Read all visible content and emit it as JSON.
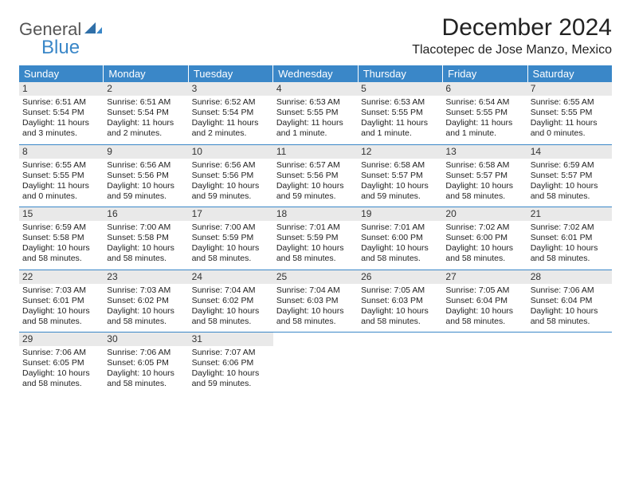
{
  "logo": {
    "word1": "General",
    "word2": "Blue"
  },
  "title": "December 2024",
  "location": "Tlacotepec de Jose Manzo, Mexico",
  "colors": {
    "header_bg": "#3a87c8",
    "header_text": "#ffffff",
    "daynum_bg": "#e9e9e9",
    "divider": "#3a87c8",
    "page_bg": "#ffffff",
    "text": "#222222",
    "logo_gray": "#555555",
    "logo_blue": "#3a87c8"
  },
  "dow": [
    "Sunday",
    "Monday",
    "Tuesday",
    "Wednesday",
    "Thursday",
    "Friday",
    "Saturday"
  ],
  "weeks": [
    [
      {
        "n": "1",
        "sr": "Sunrise: 6:51 AM",
        "ss": "Sunset: 5:54 PM",
        "dl": "Daylight: 11 hours and 3 minutes."
      },
      {
        "n": "2",
        "sr": "Sunrise: 6:51 AM",
        "ss": "Sunset: 5:54 PM",
        "dl": "Daylight: 11 hours and 2 minutes."
      },
      {
        "n": "3",
        "sr": "Sunrise: 6:52 AM",
        "ss": "Sunset: 5:54 PM",
        "dl": "Daylight: 11 hours and 2 minutes."
      },
      {
        "n": "4",
        "sr": "Sunrise: 6:53 AM",
        "ss": "Sunset: 5:55 PM",
        "dl": "Daylight: 11 hours and 1 minute."
      },
      {
        "n": "5",
        "sr": "Sunrise: 6:53 AM",
        "ss": "Sunset: 5:55 PM",
        "dl": "Daylight: 11 hours and 1 minute."
      },
      {
        "n": "6",
        "sr": "Sunrise: 6:54 AM",
        "ss": "Sunset: 5:55 PM",
        "dl": "Daylight: 11 hours and 1 minute."
      },
      {
        "n": "7",
        "sr": "Sunrise: 6:55 AM",
        "ss": "Sunset: 5:55 PM",
        "dl": "Daylight: 11 hours and 0 minutes."
      }
    ],
    [
      {
        "n": "8",
        "sr": "Sunrise: 6:55 AM",
        "ss": "Sunset: 5:55 PM",
        "dl": "Daylight: 11 hours and 0 minutes."
      },
      {
        "n": "9",
        "sr": "Sunrise: 6:56 AM",
        "ss": "Sunset: 5:56 PM",
        "dl": "Daylight: 10 hours and 59 minutes."
      },
      {
        "n": "10",
        "sr": "Sunrise: 6:56 AM",
        "ss": "Sunset: 5:56 PM",
        "dl": "Daylight: 10 hours and 59 minutes."
      },
      {
        "n": "11",
        "sr": "Sunrise: 6:57 AM",
        "ss": "Sunset: 5:56 PM",
        "dl": "Daylight: 10 hours and 59 minutes."
      },
      {
        "n": "12",
        "sr": "Sunrise: 6:58 AM",
        "ss": "Sunset: 5:57 PM",
        "dl": "Daylight: 10 hours and 59 minutes."
      },
      {
        "n": "13",
        "sr": "Sunrise: 6:58 AM",
        "ss": "Sunset: 5:57 PM",
        "dl": "Daylight: 10 hours and 58 minutes."
      },
      {
        "n": "14",
        "sr": "Sunrise: 6:59 AM",
        "ss": "Sunset: 5:57 PM",
        "dl": "Daylight: 10 hours and 58 minutes."
      }
    ],
    [
      {
        "n": "15",
        "sr": "Sunrise: 6:59 AM",
        "ss": "Sunset: 5:58 PM",
        "dl": "Daylight: 10 hours and 58 minutes."
      },
      {
        "n": "16",
        "sr": "Sunrise: 7:00 AM",
        "ss": "Sunset: 5:58 PM",
        "dl": "Daylight: 10 hours and 58 minutes."
      },
      {
        "n": "17",
        "sr": "Sunrise: 7:00 AM",
        "ss": "Sunset: 5:59 PM",
        "dl": "Daylight: 10 hours and 58 minutes."
      },
      {
        "n": "18",
        "sr": "Sunrise: 7:01 AM",
        "ss": "Sunset: 5:59 PM",
        "dl": "Daylight: 10 hours and 58 minutes."
      },
      {
        "n": "19",
        "sr": "Sunrise: 7:01 AM",
        "ss": "Sunset: 6:00 PM",
        "dl": "Daylight: 10 hours and 58 minutes."
      },
      {
        "n": "20",
        "sr": "Sunrise: 7:02 AM",
        "ss": "Sunset: 6:00 PM",
        "dl": "Daylight: 10 hours and 58 minutes."
      },
      {
        "n": "21",
        "sr": "Sunrise: 7:02 AM",
        "ss": "Sunset: 6:01 PM",
        "dl": "Daylight: 10 hours and 58 minutes."
      }
    ],
    [
      {
        "n": "22",
        "sr": "Sunrise: 7:03 AM",
        "ss": "Sunset: 6:01 PM",
        "dl": "Daylight: 10 hours and 58 minutes."
      },
      {
        "n": "23",
        "sr": "Sunrise: 7:03 AM",
        "ss": "Sunset: 6:02 PM",
        "dl": "Daylight: 10 hours and 58 minutes."
      },
      {
        "n": "24",
        "sr": "Sunrise: 7:04 AM",
        "ss": "Sunset: 6:02 PM",
        "dl": "Daylight: 10 hours and 58 minutes."
      },
      {
        "n": "25",
        "sr": "Sunrise: 7:04 AM",
        "ss": "Sunset: 6:03 PM",
        "dl": "Daylight: 10 hours and 58 minutes."
      },
      {
        "n": "26",
        "sr": "Sunrise: 7:05 AM",
        "ss": "Sunset: 6:03 PM",
        "dl": "Daylight: 10 hours and 58 minutes."
      },
      {
        "n": "27",
        "sr": "Sunrise: 7:05 AM",
        "ss": "Sunset: 6:04 PM",
        "dl": "Daylight: 10 hours and 58 minutes."
      },
      {
        "n": "28",
        "sr": "Sunrise: 7:06 AM",
        "ss": "Sunset: 6:04 PM",
        "dl": "Daylight: 10 hours and 58 minutes."
      }
    ],
    [
      {
        "n": "29",
        "sr": "Sunrise: 7:06 AM",
        "ss": "Sunset: 6:05 PM",
        "dl": "Daylight: 10 hours and 58 minutes."
      },
      {
        "n": "30",
        "sr": "Sunrise: 7:06 AM",
        "ss": "Sunset: 6:05 PM",
        "dl": "Daylight: 10 hours and 58 minutes."
      },
      {
        "n": "31",
        "sr": "Sunrise: 7:07 AM",
        "ss": "Sunset: 6:06 PM",
        "dl": "Daylight: 10 hours and 59 minutes."
      },
      null,
      null,
      null,
      null
    ]
  ]
}
